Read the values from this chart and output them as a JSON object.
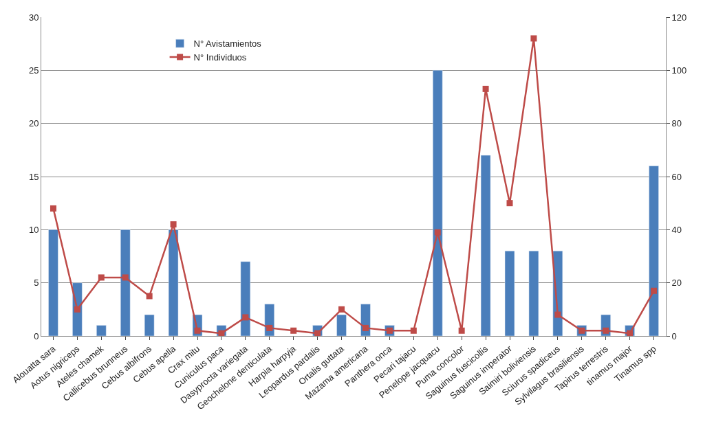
{
  "chart_data": {
    "type": "bar",
    "categories": [
      "Alouatta sara",
      "Aotus nigriceps",
      "Ateles chamek",
      "Callicebus brunneus",
      "Cebus albifrons",
      "Cebus apella",
      "Crax mitu",
      "Cuniculus paca",
      "Dasyprocta variegata",
      "Geochelone denticulata",
      "Harpia harpyja",
      "Leopardus pardalis",
      "Ortalis guttata",
      "Mazama americana",
      "Panthera onca",
      "Pecari tajacu",
      "Penelope jacquacu",
      "Puma concolor",
      "Saguinus fuscicollis",
      "Saguinus imperator",
      "Saimiri boliviensis",
      "Sciurus spadiceus",
      "Sylvilagus brasiliensis",
      "Tapirus terrestris",
      "tinamus major",
      "Tinamus spp"
    ],
    "series": [
      {
        "name": "N° Avistamientos",
        "color": "#4a7ebb",
        "values": [
          10,
          5,
          1,
          10,
          2,
          10,
          2,
          1,
          7,
          3,
          null,
          1,
          2,
          3,
          1,
          null,
          25,
          null,
          17,
          8,
          8,
          8,
          1,
          2,
          1,
          16
        ]
      },
      {
        "name": "N° Individuos",
        "type": "line",
        "axis": "y2",
        "color": "#be4b48",
        "marker": "square",
        "values": [
          48,
          10,
          22,
          22,
          15,
          42,
          2,
          1,
          7,
          3,
          2,
          1,
          10,
          3,
          2,
          2,
          39,
          2,
          93,
          50,
          112,
          8,
          2,
          2,
          1,
          17
        ]
      }
    ],
    "ylim": [
      0,
      30
    ],
    "yticks": [
      0,
      5,
      10,
      15,
      20,
      25,
      30
    ],
    "y2lim": [
      0,
      120
    ],
    "y2ticks": [
      0,
      20,
      40,
      60,
      80,
      100,
      120
    ],
    "grid": "y",
    "legend": "top left"
  }
}
